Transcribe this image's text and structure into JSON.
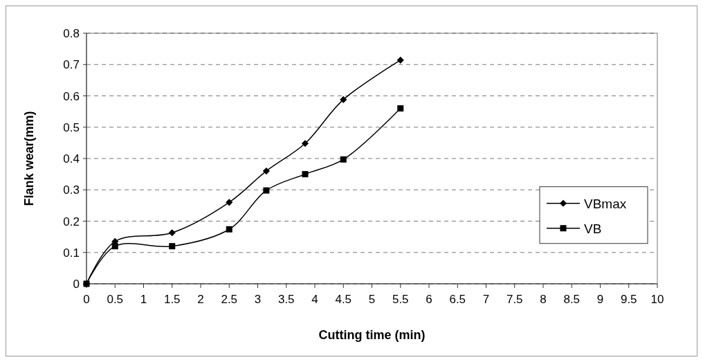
{
  "chart_data": {
    "type": "line",
    "xlabel": "Cutting time (min)",
    "ylabel": "Flank wear(mm)",
    "x": [
      0,
      0.5,
      1.5,
      2.5,
      3.15,
      3.83,
      4.5,
      5.5
    ],
    "series": [
      {
        "name": "VBmax",
        "color": "#000000",
        "marker": "diamond",
        "values": [
          0,
          0.135,
          0.163,
          0.26,
          0.36,
          0.448,
          0.588,
          0.714
        ]
      },
      {
        "name": "VB",
        "color": "#000000",
        "marker": "square",
        "values": [
          0,
          0.12,
          0.12,
          0.174,
          0.298,
          0.35,
          0.397,
          0.56
        ]
      }
    ],
    "xlim": [
      0,
      10
    ],
    "xticks": [
      0,
      0.5,
      1,
      1.5,
      2,
      2.5,
      3,
      3.5,
      4,
      4.5,
      5,
      5.5,
      6,
      6.5,
      7,
      7.5,
      8,
      8.5,
      9,
      9.5,
      10
    ],
    "ylim": [
      0,
      0.8
    ],
    "yticks": [
      0,
      0.1,
      0.2,
      0.3,
      0.4,
      0.5,
      0.6,
      0.7,
      0.8
    ],
    "grid": "y",
    "legend": "right",
    "line_style": "solid"
  }
}
